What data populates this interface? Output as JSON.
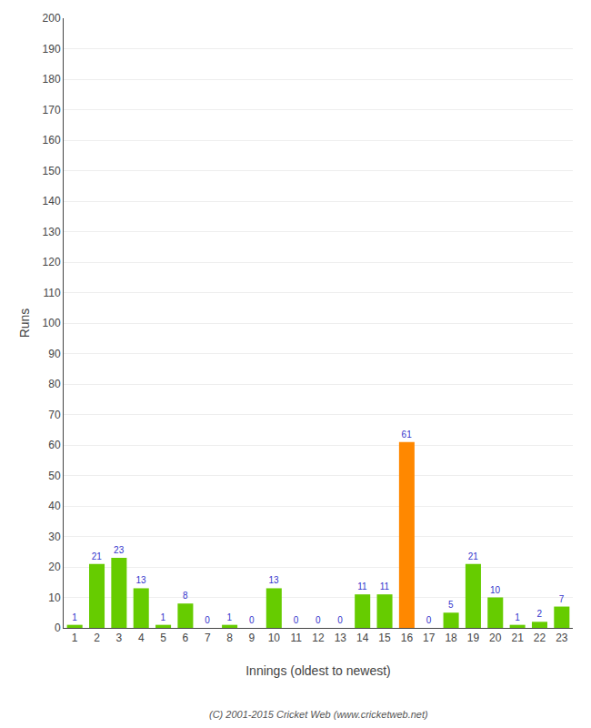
{
  "chart_data": {
    "type": "bar",
    "xlabel": "Innings (oldest to newest)",
    "ylabel": "Runs",
    "categories": [
      "1",
      "2",
      "3",
      "4",
      "5",
      "6",
      "7",
      "8",
      "9",
      "10",
      "11",
      "12",
      "13",
      "14",
      "15",
      "16",
      "17",
      "18",
      "19",
      "20",
      "21",
      "22",
      "23"
    ],
    "values": [
      1,
      21,
      23,
      13,
      1,
      8,
      0,
      1,
      0,
      13,
      0,
      0,
      0,
      11,
      11,
      61,
      0,
      5,
      21,
      10,
      1,
      2,
      7
    ],
    "colors": [
      "#66cc00",
      "#66cc00",
      "#66cc00",
      "#66cc00",
      "#66cc00",
      "#66cc00",
      "#66cc00",
      "#66cc00",
      "#66cc00",
      "#66cc00",
      "#66cc00",
      "#66cc00",
      "#66cc00",
      "#66cc00",
      "#66cc00",
      "#ff8800",
      "#66cc00",
      "#66cc00",
      "#66cc00",
      "#66cc00",
      "#66cc00",
      "#66cc00",
      "#66cc00"
    ],
    "ylim": [
      0,
      200
    ],
    "yticks": [
      0,
      10,
      20,
      30,
      40,
      50,
      60,
      70,
      80,
      90,
      100,
      110,
      120,
      130,
      140,
      150,
      160,
      170,
      180,
      190,
      200
    ],
    "grid": true,
    "data_labels": true,
    "annotations": [
      "(C) 2001-2015 Cricket Web (www.cricketweb.net)"
    ]
  }
}
